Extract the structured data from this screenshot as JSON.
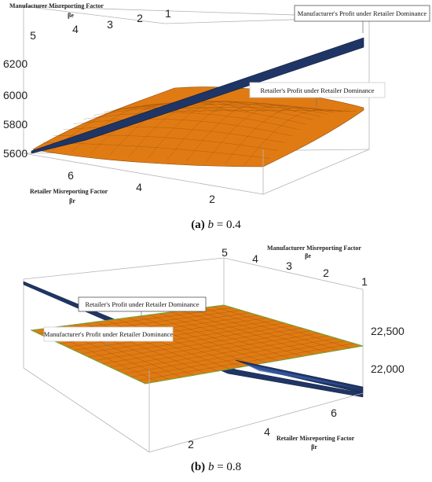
{
  "panels": [
    {
      "id": "a",
      "caption": {
        "letter": "(a)",
        "var": "b",
        "eq": " = 0.4"
      },
      "labels": {
        "be_title": "Manufacturer Misreporting Factor",
        "be_symbol": "βe",
        "br_title": "Retailer Misreporting Factor",
        "br_symbol": "βr"
      },
      "be_ticks": [
        "5",
        "4",
        "3",
        "2",
        "1"
      ],
      "br_ticks": [
        "6",
        "4",
        "2"
      ],
      "z_ticks": [
        "6200",
        "6000",
        "5800",
        "5600"
      ],
      "callouts": [
        "Manufacturer's Profit under Retailer Dominance",
        "Retailer's Profit under Retailer Dominance"
      ]
    },
    {
      "id": "b",
      "caption": {
        "letter": "(b)",
        "var": "b",
        "eq": " = 0.8"
      },
      "labels": {
        "be_title": "Manufacturer Misreporting Factor",
        "be_symbol": "βe",
        "br_title": "Retailer Misreporting Factor",
        "br_symbol": "βr"
      },
      "be_ticks": [
        "5",
        "4",
        "3",
        "2",
        "1"
      ],
      "br_ticks": [
        "2",
        "4",
        "6"
      ],
      "z_ticks": [
        "22,500",
        "22,000"
      ],
      "callouts": [
        "Retailer's Profit under Retailer Dominance",
        "Manufacturer's Profit under Retailer Dominance"
      ]
    }
  ],
  "colors": {
    "retailer_surface": "#e07b14",
    "manufacturer_surface": "#1f3566",
    "mesh": "#7a3a00",
    "box": "#b4b4b4"
  },
  "chart_data": [
    {
      "type": "surface3d",
      "panel": "a",
      "x_axis": {
        "label": "Retailer Misreporting Factor βr",
        "range": [
          1,
          7
        ]
      },
      "y_axis": {
        "label": "Manufacturer Misreporting Factor βe",
        "range": [
          1,
          5
        ]
      },
      "z_axis": {
        "range": [
          5550,
          6300
        ]
      },
      "series": [
        {
          "name": "Manufacturer's Profit under Retailer Dominance",
          "shape": "plane rising toward βr=1, βe=1",
          "z_range": [
            5580,
            6300
          ]
        },
        {
          "name": "Retailer's Profit under Retailer Dominance",
          "shape": "concave dome",
          "z_range": [
            5650,
            5950
          ]
        }
      ]
    },
    {
      "type": "surface3d",
      "panel": "b",
      "x_axis": {
        "label": "Retailer Misreporting Factor βr",
        "range": [
          1,
          7
        ]
      },
      "y_axis": {
        "label": "Manufacturer Misreporting Factor βe",
        "range": [
          1,
          5
        ]
      },
      "z_axis": {
        "range": [
          21750,
          22800
        ]
      },
      "series": [
        {
          "name": "Retailer's Profit under Retailer Dominance",
          "shape": "near-flat plane",
          "z_range": [
            22300,
            22500
          ]
        },
        {
          "name": "Manufacturer's Profit under Retailer Dominance",
          "shape": "plane falling toward βr=7",
          "z_range": [
            21800,
            22800
          ]
        }
      ]
    }
  ]
}
